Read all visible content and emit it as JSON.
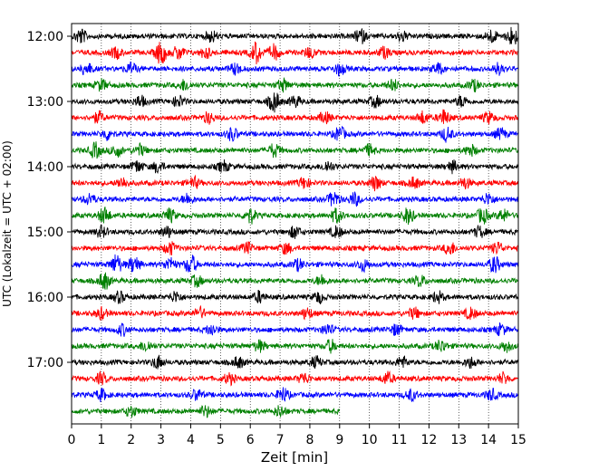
{
  "chart_data": {
    "type": "line",
    "title": "",
    "xlabel": "Zeit  [min]",
    "ylabel": "UTC (Lokalzeit = UTC + 02:00)",
    "xlim": [
      0,
      15
    ],
    "xticks": [
      0,
      1,
      2,
      3,
      4,
      5,
      6,
      7,
      8,
      9,
      10,
      11,
      12,
      13,
      14,
      15
    ],
    "x_grid": "dotted vertical lines at each minute",
    "row_interval_min": 15,
    "yticks": [
      {
        "row": 0,
        "label": "12:00"
      },
      {
        "row": 4,
        "label": "13:00"
      },
      {
        "row": 8,
        "label": "14:00"
      },
      {
        "row": 12,
        "label": "15:00"
      },
      {
        "row": 16,
        "label": "16:00"
      },
      {
        "row": 20,
        "label": "17:00"
      }
    ],
    "colors": [
      "#000000",
      "#ff0000",
      "#0000ff",
      "#008000"
    ],
    "rows": [
      {
        "start": "12:00",
        "end_min": 15,
        "bursts": [
          {
            "t": 0.3,
            "a": 1.4
          },
          {
            "t": 4.7,
            "a": 1.0
          },
          {
            "t": 9.7,
            "a": 1.3
          },
          {
            "t": 11.1,
            "a": 0.9
          },
          {
            "t": 14.1,
            "a": 1.2
          },
          {
            "t": 14.8,
            "a": 1.8
          }
        ]
      },
      {
        "start": "12:15",
        "end_min": 15,
        "bursts": [
          {
            "t": 1.5,
            "a": 1.0
          },
          {
            "t": 3.0,
            "a": 2.2
          },
          {
            "t": 3.6,
            "a": 1.3
          },
          {
            "t": 4.5,
            "a": 1.0
          },
          {
            "t": 6.2,
            "a": 2.0
          },
          {
            "t": 6.8,
            "a": 1.4
          },
          {
            "t": 8.0,
            "a": 1.0
          },
          {
            "t": 10.5,
            "a": 1.0
          }
        ]
      },
      {
        "start": "12:30",
        "end_min": 15,
        "bursts": [
          {
            "t": 0.5,
            "a": 1.2
          },
          {
            "t": 2.0,
            "a": 1.0
          },
          {
            "t": 5.5,
            "a": 1.0
          },
          {
            "t": 9.0,
            "a": 1.1
          },
          {
            "t": 12.3,
            "a": 1.0
          },
          {
            "t": 14.3,
            "a": 1.0
          }
        ]
      },
      {
        "start": "12:45",
        "end_min": 15,
        "bursts": [
          {
            "t": 1.0,
            "a": 1.0
          },
          {
            "t": 3.8,
            "a": 1.0
          },
          {
            "t": 7.1,
            "a": 1.1
          },
          {
            "t": 10.8,
            "a": 1.0
          },
          {
            "t": 13.5,
            "a": 1.0
          }
        ]
      },
      {
        "start": "13:00",
        "end_min": 15,
        "bursts": [
          {
            "t": 2.3,
            "a": 1.0
          },
          {
            "t": 3.6,
            "a": 1.0
          },
          {
            "t": 6.8,
            "a": 1.9
          },
          {
            "t": 7.5,
            "a": 1.0
          },
          {
            "t": 10.2,
            "a": 1.0
          },
          {
            "t": 13.1,
            "a": 1.0
          }
        ]
      },
      {
        "start": "13:15",
        "end_min": 15,
        "bursts": [
          {
            "t": 0.9,
            "a": 1.0
          },
          {
            "t": 4.6,
            "a": 1.0
          },
          {
            "t": 8.5,
            "a": 1.0
          },
          {
            "t": 11.8,
            "a": 1.1
          },
          {
            "t": 12.5,
            "a": 1.4
          },
          {
            "t": 14.0,
            "a": 1.0
          }
        ]
      },
      {
        "start": "13:30",
        "end_min": 15,
        "bursts": [
          {
            "t": 1.2,
            "a": 1.0
          },
          {
            "t": 5.4,
            "a": 1.2
          },
          {
            "t": 9.0,
            "a": 1.3
          },
          {
            "t": 12.6,
            "a": 1.3
          },
          {
            "t": 14.4,
            "a": 1.0
          }
        ]
      },
      {
        "start": "13:45",
        "end_min": 15,
        "bursts": [
          {
            "t": 0.8,
            "a": 1.4
          },
          {
            "t": 1.5,
            "a": 1.2
          },
          {
            "t": 2.3,
            "a": 1.0
          },
          {
            "t": 6.8,
            "a": 1.2
          },
          {
            "t": 10.0,
            "a": 1.0
          },
          {
            "t": 13.4,
            "a": 1.0
          }
        ]
      },
      {
        "start": "14:00",
        "end_min": 15,
        "bursts": [
          {
            "t": 2.2,
            "a": 1.1
          },
          {
            "t": 2.9,
            "a": 1.0
          },
          {
            "t": 5.1,
            "a": 1.0
          },
          {
            "t": 8.6,
            "a": 1.0
          },
          {
            "t": 12.8,
            "a": 1.0
          }
        ]
      },
      {
        "start": "14:15",
        "end_min": 15,
        "bursts": [
          {
            "t": 1.7,
            "a": 1.0
          },
          {
            "t": 4.1,
            "a": 1.0
          },
          {
            "t": 7.8,
            "a": 1.0
          },
          {
            "t": 10.2,
            "a": 1.3
          },
          {
            "t": 11.5,
            "a": 1.0
          },
          {
            "t": 13.2,
            "a": 1.0
          }
        ]
      },
      {
        "start": "14:30",
        "end_min": 15,
        "bursts": [
          {
            "t": 0.6,
            "a": 1.0
          },
          {
            "t": 3.9,
            "a": 1.0
          },
          {
            "t": 8.8,
            "a": 1.4
          },
          {
            "t": 9.5,
            "a": 1.2
          },
          {
            "t": 14.0,
            "a": 1.1
          }
        ]
      },
      {
        "start": "14:45",
        "end_min": 15,
        "bursts": [
          {
            "t": 1.1,
            "a": 1.5
          },
          {
            "t": 3.3,
            "a": 1.2
          },
          {
            "t": 6.0,
            "a": 1.4
          },
          {
            "t": 8.9,
            "a": 1.3
          },
          {
            "t": 11.3,
            "a": 1.5
          },
          {
            "t": 13.8,
            "a": 1.4
          },
          {
            "t": 14.5,
            "a": 1.1
          }
        ]
      },
      {
        "start": "15:00",
        "end_min": 15,
        "bursts": [
          {
            "t": 1.0,
            "a": 1.0
          },
          {
            "t": 3.2,
            "a": 1.0
          },
          {
            "t": 7.5,
            "a": 1.1
          },
          {
            "t": 8.9,
            "a": 1.0
          },
          {
            "t": 13.7,
            "a": 1.0
          }
        ]
      },
      {
        "start": "15:15",
        "end_min": 15,
        "bursts": [
          {
            "t": 3.3,
            "a": 1.2
          },
          {
            "t": 5.9,
            "a": 1.0
          },
          {
            "t": 7.2,
            "a": 1.0
          },
          {
            "t": 12.7,
            "a": 1.2
          },
          {
            "t": 14.3,
            "a": 1.1
          }
        ]
      },
      {
        "start": "15:30",
        "end_min": 15,
        "bursts": [
          {
            "t": 1.5,
            "a": 1.8
          },
          {
            "t": 2.1,
            "a": 1.5
          },
          {
            "t": 3.3,
            "a": 1.2
          },
          {
            "t": 4.0,
            "a": 1.8
          },
          {
            "t": 7.6,
            "a": 1.0
          },
          {
            "t": 9.8,
            "a": 1.1
          },
          {
            "t": 14.2,
            "a": 1.5
          }
        ]
      },
      {
        "start": "15:45",
        "end_min": 15,
        "bursts": [
          {
            "t": 1.1,
            "a": 1.6
          },
          {
            "t": 4.2,
            "a": 1.0
          },
          {
            "t": 8.4,
            "a": 1.0
          },
          {
            "t": 11.7,
            "a": 1.0
          }
        ]
      },
      {
        "start": "16:00",
        "end_min": 15,
        "bursts": [
          {
            "t": 1.6,
            "a": 1.0
          },
          {
            "t": 3.5,
            "a": 1.0
          },
          {
            "t": 6.3,
            "a": 1.0
          },
          {
            "t": 8.3,
            "a": 1.0
          },
          {
            "t": 12.3,
            "a": 1.0
          }
        ]
      },
      {
        "start": "16:15",
        "end_min": 15,
        "bursts": [
          {
            "t": 1.0,
            "a": 1.0
          },
          {
            "t": 4.3,
            "a": 1.0
          },
          {
            "t": 7.9,
            "a": 1.0
          },
          {
            "t": 11.5,
            "a": 1.0
          },
          {
            "t": 13.4,
            "a": 1.0
          }
        ]
      },
      {
        "start": "16:30",
        "end_min": 15,
        "bursts": [
          {
            "t": 1.7,
            "a": 1.0
          },
          {
            "t": 4.7,
            "a": 1.0
          },
          {
            "t": 8.6,
            "a": 1.0
          },
          {
            "t": 10.9,
            "a": 1.0
          },
          {
            "t": 14.4,
            "a": 1.0
          }
        ]
      },
      {
        "start": "16:45",
        "end_min": 15,
        "bursts": [
          {
            "t": 2.5,
            "a": 1.0
          },
          {
            "t": 6.3,
            "a": 1.0
          },
          {
            "t": 8.7,
            "a": 1.1
          },
          {
            "t": 12.4,
            "a": 1.1
          },
          {
            "t": 14.6,
            "a": 1.0
          }
        ]
      },
      {
        "start": "17:00",
        "end_min": 15,
        "bursts": [
          {
            "t": 2.9,
            "a": 1.2
          },
          {
            "t": 5.6,
            "a": 1.0
          },
          {
            "t": 8.2,
            "a": 1.0
          },
          {
            "t": 11.1,
            "a": 1.0
          },
          {
            "t": 13.4,
            "a": 1.0
          }
        ]
      },
      {
        "start": "17:15",
        "end_min": 15,
        "bursts": [
          {
            "t": 1.0,
            "a": 1.0
          },
          {
            "t": 5.3,
            "a": 1.0
          },
          {
            "t": 7.8,
            "a": 1.0
          },
          {
            "t": 10.6,
            "a": 1.1
          },
          {
            "t": 14.5,
            "a": 1.0
          }
        ]
      },
      {
        "start": "17:30",
        "end_min": 15,
        "bursts": [
          {
            "t": 1.0,
            "a": 1.0
          },
          {
            "t": 4.2,
            "a": 1.0
          },
          {
            "t": 7.1,
            "a": 1.3
          },
          {
            "t": 11.4,
            "a": 1.0
          },
          {
            "t": 14.1,
            "a": 1.0
          }
        ]
      },
      {
        "start": "17:45",
        "end_min": 9,
        "bursts": [
          {
            "t": 2.0,
            "a": 1.0
          },
          {
            "t": 4.5,
            "a": 1.0
          },
          {
            "t": 7.0,
            "a": 1.0
          }
        ]
      }
    ]
  }
}
